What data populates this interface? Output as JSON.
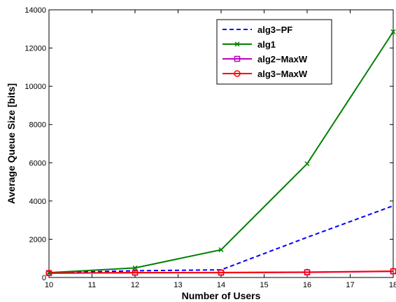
{
  "chart_data": {
    "type": "line",
    "title": "",
    "xlabel": "Number of Users",
    "ylabel": "Average Queue Size [bits]",
    "xlim": [
      10,
      18
    ],
    "ylim": [
      0,
      14000
    ],
    "xticks": [
      "10",
      "11",
      "12",
      "13",
      "14",
      "15",
      "16",
      "17",
      "18"
    ],
    "yticks": [
      "0",
      "2000",
      "4000",
      "6000",
      "8000",
      "10000",
      "12000",
      "14000"
    ],
    "grid": false,
    "legend_position": "top-right",
    "x": [
      10,
      12,
      14,
      16,
      18
    ],
    "series": [
      {
        "name": "alg3−PF",
        "color": "#0000ff",
        "line_style": "dashed",
        "marker": "none",
        "values": [
          250,
          350,
          400,
          2100,
          3750
        ]
      },
      {
        "name": "alg1",
        "color": "#007f00",
        "line_style": "solid",
        "marker": "x",
        "values": [
          250,
          500,
          1450,
          5950,
          12850
        ]
      },
      {
        "name": "alg2−MaxW",
        "color": "#bf00bf",
        "line_style": "solid",
        "marker": "square",
        "values": [
          230,
          250,
          250,
          270,
          320
        ]
      },
      {
        "name": "alg3−MaxW",
        "color": "#ff0000",
        "line_style": "solid",
        "marker": "circle",
        "values": [
          230,
          250,
          260,
          280,
          330
        ]
      }
    ]
  }
}
